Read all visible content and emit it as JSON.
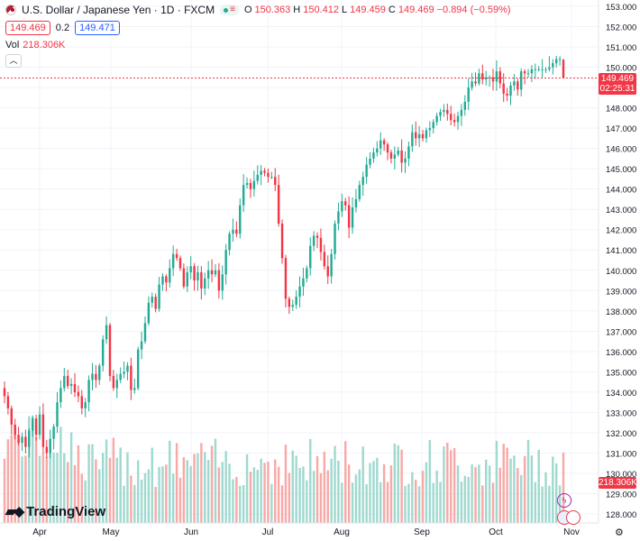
{
  "header": {
    "title": "U.S. Dollar / Japanese Yen · 1D · FXCM",
    "ohlc": {
      "o_label": "O",
      "o": "150.363",
      "h_label": "H",
      "h": "150.412",
      "l_label": "L",
      "l": "149.459",
      "c_label": "C",
      "c": "149.469",
      "change": "−0.894 (−0.59%)"
    }
  },
  "quote": {
    "sell": "149.469",
    "spread": "0.2",
    "buy": "149.471"
  },
  "volume_legend": {
    "label": "Vol",
    "value": "218.306K"
  },
  "price_tag": {
    "price": "149.469",
    "countdown": "02:25:31"
  },
  "volume_tag": "218.306K",
  "logo_text": "TradingView",
  "icons": {
    "collapse": "chevron-up-icon",
    "settings": "gear-icon",
    "flag": "us-jp-flag-icon",
    "lightning": "lightning-icon"
  },
  "colors": {
    "up": "#22ab94",
    "down": "#f23645",
    "vol_up": "#9fd9cf",
    "vol_down": "#f7a9a7",
    "accent": "#2962ff"
  },
  "chart_data": {
    "type": "candlestick",
    "title": "U.S. Dollar / Japanese Yen · 1D · FXCM",
    "y_axis": {
      "min": 128,
      "max": 153,
      "ticks": [
        "153.000",
        "152.000",
        "151.000",
        "150.000",
        "149.000",
        "148.000",
        "147.000",
        "146.000",
        "145.000",
        "144.000",
        "143.000",
        "142.000",
        "141.000",
        "140.000",
        "139.000",
        "138.000",
        "137.000",
        "136.000",
        "135.000",
        "134.000",
        "133.000",
        "132.000",
        "131.000",
        "130.000",
        "129.000",
        "128.000"
      ]
    },
    "x_axis": {
      "labels": [
        "Apr",
        "May",
        "Jun",
        "Jul",
        "Aug",
        "Sep",
        "Oct",
        "Nov"
      ]
    },
    "close_series_approx": [
      133.8,
      133.2,
      132.4,
      131.9,
      131.5,
      131.8,
      131.3,
      132.1,
      132.7,
      131.9,
      132.9,
      131.3,
      131.0,
      131.7,
      132.3,
      133.5,
      134.2,
      134.8,
      134.3,
      134.4,
      134.0,
      133.8,
      133.2,
      133.5,
      134.6,
      134.9,
      134.6,
      135.3,
      136.6,
      137.3,
      134.8,
      134.2,
      134.6,
      134.9,
      135.0,
      135.3,
      134.1,
      134.2,
      136.1,
      136.5,
      137.4,
      138.4,
      138.7,
      138.1,
      139.3,
      139.7,
      139.4,
      140.1,
      140.8,
      140.6,
      140.1,
      139.2,
      139.9,
      140.2,
      139.5,
      139.9,
      139.1,
      139.6,
      140.0,
      139.8,
      140.0,
      139.0,
      139.8,
      141.0,
      141.8,
      142.0,
      141.8,
      143.2,
      144.2,
      144.3,
      144.0,
      144.4,
      144.7,
      144.9,
      144.8,
      144.6,
      144.6,
      144.2,
      142.3,
      140.6,
      138.6,
      138.2,
      138.3,
      138.7,
      139.2,
      139.6,
      140.1,
      141.2,
      141.7,
      141.6,
      140.9,
      140.2,
      139.7,
      140.8,
      142.3,
      142.9,
      143.4,
      143.2,
      142.1,
      143.1,
      143.5,
      144.2,
      144.6,
      145.2,
      145.5,
      145.8,
      146.0,
      146.4,
      146.2,
      145.8,
      145.5,
      145.7,
      145.9,
      145.3,
      145.5,
      146.1,
      146.8,
      146.5,
      146.7,
      146.5,
      146.9,
      147.0,
      147.3,
      147.6,
      147.8,
      147.9,
      147.7,
      147.4,
      147.3,
      147.6,
      147.9,
      148.3,
      149.0,
      149.3,
      149.2,
      149.7,
      149.4,
      149.5,
      149.5,
      149.3,
      149.8,
      149.2,
      148.7,
      148.6,
      149.1,
      149.3,
      148.9,
      149.8,
      149.7,
      149.7,
      149.9,
      149.9,
      149.9,
      149.9,
      149.9,
      150.0,
      150.2,
      150.4,
      150.4,
      149.5
    ],
    "last": {
      "open": 150.363,
      "high": 150.412,
      "low": 149.459,
      "close": 149.469
    },
    "volume_last": "218.306K"
  }
}
